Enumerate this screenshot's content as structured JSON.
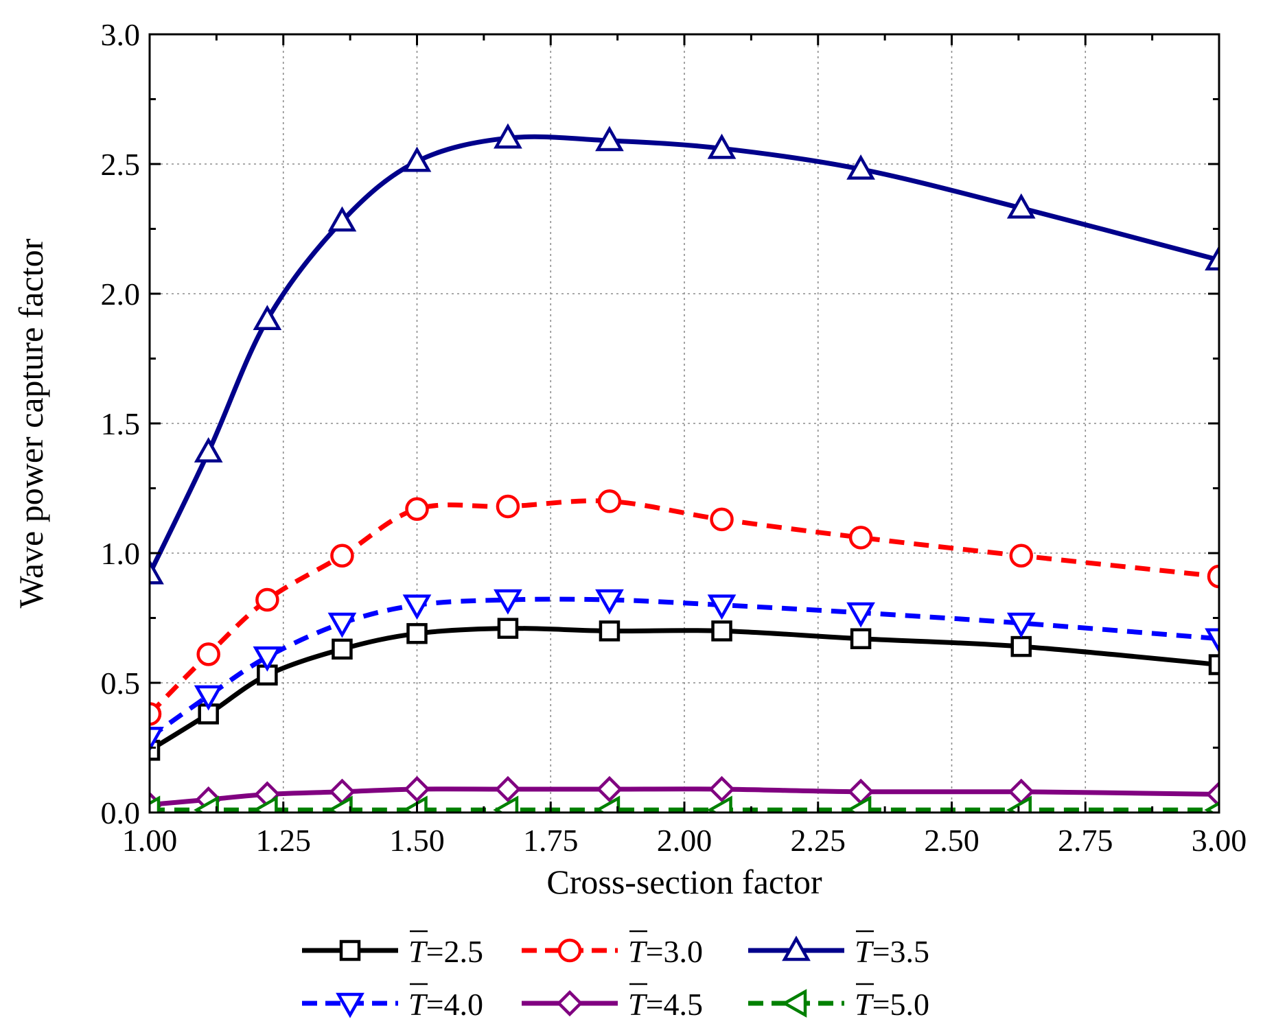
{
  "chart_data": {
    "type": "line",
    "title": "",
    "xlabel": "Cross-section factor",
    "ylabel": "Wave power capture factor",
    "xlim": [
      1.0,
      3.0
    ],
    "ylim": [
      0.0,
      3.0
    ],
    "xticks": [
      "1.00",
      "1.25",
      "1.50",
      "1.75",
      "2.00",
      "2.25",
      "2.50",
      "2.75",
      "3.00"
    ],
    "yticks": [
      "0.0",
      "0.5",
      "1.0",
      "1.5",
      "2.0",
      "2.5",
      "3.0"
    ],
    "grid": true,
    "legend_position": "bottom",
    "x": [
      1.0,
      1.11,
      1.22,
      1.36,
      1.5,
      1.67,
      1.86,
      2.07,
      2.33,
      2.63,
      3.0
    ],
    "series": [
      {
        "name": "=2.5",
        "symbol": "T",
        "color": "#000000",
        "dash": "solid",
        "marker": "square",
        "values": [
          0.24,
          0.38,
          0.53,
          0.63,
          0.69,
          0.71,
          0.7,
          0.7,
          0.67,
          0.64,
          0.57
        ]
      },
      {
        "name": "=3.0",
        "symbol": "T",
        "color": "#ff0000",
        "dash": "dashed",
        "marker": "circle",
        "values": [
          0.38,
          0.61,
          0.82,
          0.99,
          1.17,
          1.18,
          1.2,
          1.13,
          1.06,
          0.99,
          0.91
        ]
      },
      {
        "name": "=3.5",
        "symbol": "T",
        "color": "#00008b",
        "dash": "solid",
        "marker": "triangle-up",
        "values": [
          0.92,
          1.39,
          1.9,
          2.28,
          2.51,
          2.6,
          2.59,
          2.56,
          2.48,
          2.33,
          2.13
        ]
      },
      {
        "name": "=4.0",
        "symbol": "T",
        "color": "#0000ff",
        "dash": "dashed",
        "marker": "triangle-down",
        "values": [
          0.29,
          0.45,
          0.6,
          0.73,
          0.8,
          0.82,
          0.82,
          0.8,
          0.77,
          0.73,
          0.67
        ]
      },
      {
        "name": "=4.5",
        "symbol": "T",
        "color": "#800080",
        "dash": "solid",
        "marker": "diamond",
        "values": [
          0.03,
          0.05,
          0.07,
          0.08,
          0.09,
          0.09,
          0.09,
          0.09,
          0.08,
          0.08,
          0.07
        ]
      },
      {
        "name": "=5.0",
        "symbol": "T",
        "color": "#008000",
        "dash": "dashed",
        "marker": "triangle-left",
        "values": [
          0.01,
          0.01,
          0.01,
          0.01,
          0.01,
          0.01,
          0.01,
          0.01,
          0.01,
          0.01,
          0.01
        ]
      }
    ]
  }
}
